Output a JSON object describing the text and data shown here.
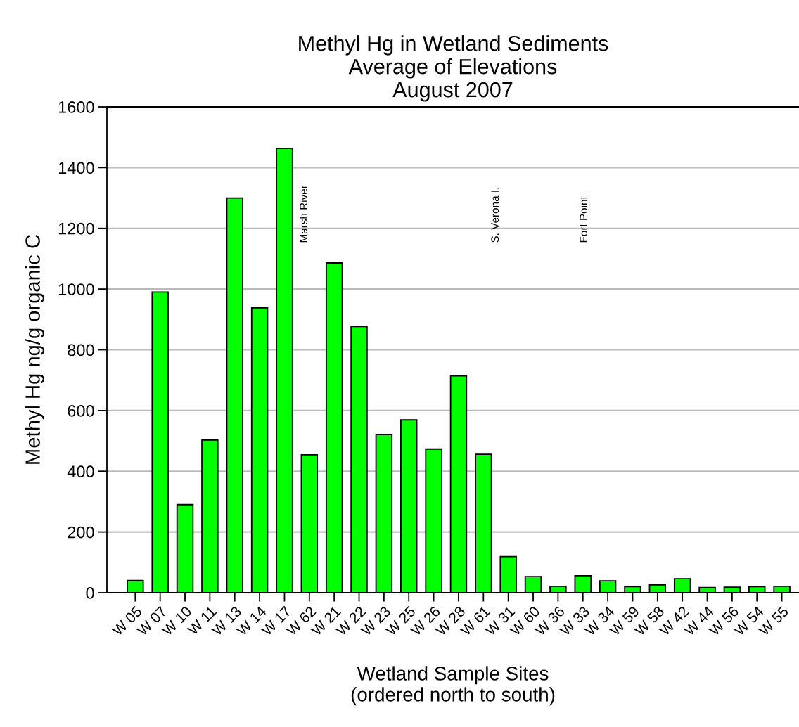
{
  "chart_data": {
    "type": "bar",
    "title": "Methyl Hg in Wetland Sediments\nAverage of Elevations\nAugust 2007",
    "xlabel": "Wetland Sample Sites\n(ordered north to south)",
    "ylabel": "Methyl Hg ng/g organic C",
    "categories": [
      "W 05",
      "W 07",
      "W 10",
      "W 11",
      "W 13",
      "W 14",
      "W 17",
      "W 62",
      "W 21",
      "W 22",
      "W 23",
      "W 25",
      "W 26",
      "W 28",
      "W 61",
      "W 31",
      "W 60",
      "W 36",
      "W 33",
      "W 34",
      "W 59",
      "W 58",
      "W 42",
      "W 44",
      "W 56",
      "W 54",
      "W 55"
    ],
    "values": [
      40,
      990,
      290,
      503,
      1300,
      938,
      1463,
      454,
      1086,
      877,
      521,
      569,
      473,
      714,
      456,
      119,
      53,
      21,
      56,
      39,
      20,
      26,
      46,
      17,
      18,
      20,
      21
    ],
    "color": "#00ff00",
    "ylim": [
      0,
      1600
    ],
    "yticks": [
      0,
      200,
      400,
      600,
      800,
      1000,
      1200,
      1400,
      1600
    ],
    "grid": "y",
    "annotations": [
      "Marsh River",
      "S. Verona I.",
      "Fort Point"
    ]
  }
}
